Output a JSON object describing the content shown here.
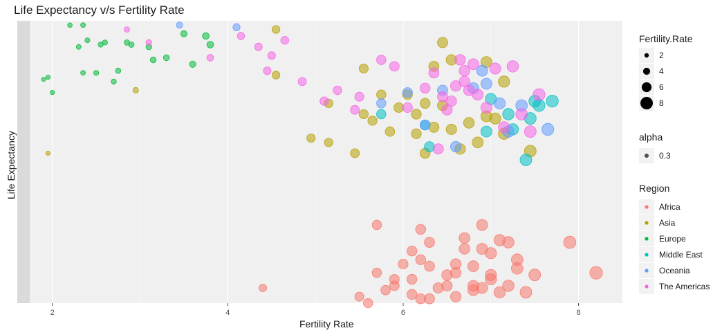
{
  "chart_data": {
    "type": "scatter",
    "title": "Life Expectancy v/s Fertility Rate",
    "xlabel": "Fertility Rate",
    "ylabel": "Life Expectancy",
    "xlim": [
      1.6,
      8.5
    ],
    "x_ticks": [
      2,
      4,
      6,
      8
    ],
    "grid": true,
    "legend_position": "right",
    "size_legend": {
      "title": "Fertility.Rate",
      "entries": [
        2,
        4,
        6,
        8
      ]
    },
    "alpha_legend": {
      "title": "alpha",
      "entries": [
        "0.3"
      ]
    },
    "series": [
      {
        "name": "Africa",
        "color": "#F8766D",
        "x": [
          4.4,
          5.5,
          5.6,
          5.7,
          5.8,
          5.9,
          5.9,
          6.0,
          6.1,
          6.1,
          6.1,
          6.2,
          6.2,
          6.3,
          6.3,
          6.4,
          6.5,
          6.6,
          6.6,
          6.7,
          6.7,
          6.8,
          6.8,
          6.8,
          6.9,
          6.9,
          7.0,
          7.0,
          7.0,
          7.1,
          7.1,
          7.2,
          7.3,
          7.3,
          7.4,
          7.5,
          7.9,
          8.2,
          5.7,
          6.3,
          6.6,
          6.9,
          6.2,
          6.5,
          7.2
        ],
        "y": [
          57,
          53,
          50,
          64,
          56,
          58,
          61,
          68,
          74,
          61,
          54,
          70,
          84,
          67,
          52,
          57,
          58,
          68,
          53,
          80,
          75,
          56,
          67,
          58,
          75,
          57,
          63,
          73,
          61,
          55,
          79,
          78,
          70,
          66,
          55,
          63,
          78,
          64,
          86,
          78,
          64,
          86,
          52,
          63,
          58
        ]
      },
      {
        "name": "Asia",
        "color": "#B79F00",
        "x": [
          1.95,
          2.95,
          4.55,
          4.55,
          4.95,
          5.15,
          5.15,
          5.45,
          5.55,
          5.55,
          5.65,
          5.75,
          5.85,
          5.95,
          6.05,
          6.15,
          6.15,
          6.25,
          6.25,
          6.35,
          6.35,
          6.45,
          6.45,
          6.55,
          6.55,
          6.65,
          6.75,
          6.85,
          6.95,
          6.95,
          7.05,
          7.15,
          7.15,
          7.45
        ],
        "y": [
          119,
          148,
          176,
          155,
          126,
          142,
          124,
          119,
          158,
          137,
          134,
          146,
          129,
          140,
          146,
          128,
          137,
          142,
          119,
          159,
          131,
          141,
          170,
          162,
          130,
          121,
          133,
          124,
          136,
          161,
          135,
          128,
          152,
          120
        ]
      },
      {
        "name": "Europe",
        "color": "#00BA38",
        "x": [
          1.9,
          1.95,
          2.0,
          2.2,
          2.3,
          2.35,
          2.35,
          2.4,
          2.5,
          2.55,
          2.6,
          2.7,
          2.75,
          2.85,
          2.9,
          3.1,
          3.15,
          3.3,
          3.5,
          3.6,
          3.75,
          3.8
        ],
        "y": [
          153,
          154,
          147,
          178,
          168,
          178,
          156,
          171,
          156,
          169,
          170,
          152,
          157,
          170,
          169,
          168,
          162,
          163,
          174,
          160,
          173,
          169
        ]
      },
      {
        "name": "Middle East",
        "color": "#00BFC4",
        "x": [
          5.75,
          6.25,
          6.3,
          6.95,
          7.0,
          7.2,
          7.25,
          7.45,
          7.5,
          7.55,
          7.7,
          7.4
        ],
        "y": [
          137,
          132,
          122,
          129,
          144,
          137,
          130,
          135,
          143,
          141,
          143,
          116
        ]
      },
      {
        "name": "Oceania",
        "color": "#619CFF",
        "x": [
          3.45,
          4.1,
          5.75,
          6.05,
          6.25,
          6.45,
          6.6,
          6.8,
          6.9,
          6.95,
          7.1,
          7.2,
          7.35,
          7.65
        ],
        "y": [
          178,
          177,
          142,
          147,
          132,
          148,
          122,
          149,
          157,
          151,
          142,
          129,
          141,
          130
        ]
      },
      {
        "name": "The Americas",
        "color": "#F564E3",
        "x": [
          2.85,
          3.1,
          3.8,
          4.15,
          4.35,
          4.45,
          4.5,
          4.65,
          4.85,
          5.1,
          5.25,
          5.45,
          5.5,
          5.75,
          5.9,
          6.05,
          6.25,
          6.35,
          6.45,
          6.55,
          6.6,
          6.65,
          6.7,
          6.75,
          6.8,
          6.85,
          6.95,
          7.05,
          7.15,
          7.25,
          7.35,
          7.45,
          7.55,
          6.5,
          6.7,
          6.4
        ],
        "y": [
          176,
          170,
          163,
          173,
          168,
          157,
          164,
          171,
          152,
          143,
          148,
          139,
          145,
          162,
          159,
          140,
          149,
          156,
          145,
          143,
          150,
          162,
          152,
          148,
          160,
          146,
          140,
          158,
          131,
          159,
          137,
          129,
          146,
          139,
          157,
          121
        ]
      }
    ]
  }
}
